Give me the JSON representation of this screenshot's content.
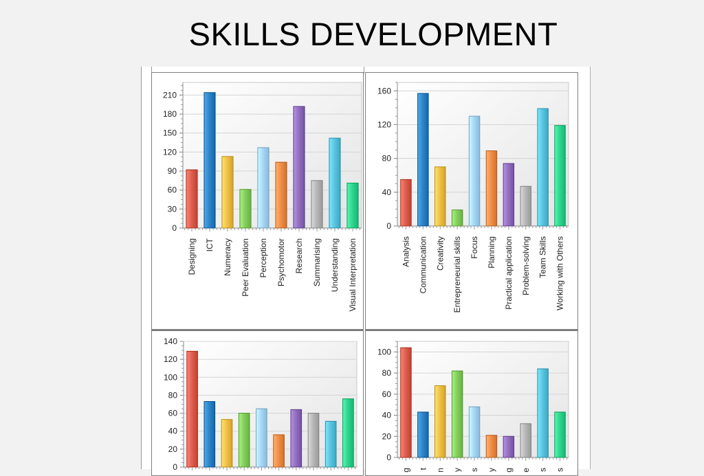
{
  "page": {
    "title": "SKILLS DEVELOPMENT"
  },
  "colors": {
    "palette": [
      "#e06050",
      "#2f86c8",
      "#f0c24a",
      "#86d060",
      "#a8d8f8",
      "#f08f4a",
      "#9370c0",
      "#b8b8b8",
      "#5cc6e0",
      "#33d690"
    ]
  },
  "chart_data": [
    {
      "type": "bar",
      "categories": [
        "Designing",
        "ICT",
        "Numeracy",
        "Peer Evaluation",
        "Perception",
        "Psychomotor",
        "Research",
        "Summarising",
        "Understanding",
        "Visual Interpretation"
      ],
      "values": [
        92,
        214,
        113,
        61,
        127,
        104,
        192,
        75,
        142,
        71
      ],
      "ylim": [
        0,
        230
      ],
      "yticks": [
        0,
        30,
        60,
        90,
        120,
        150,
        180,
        210
      ],
      "grid": true,
      "legend": "none"
    },
    {
      "type": "bar",
      "categories": [
        "Analysis",
        "Communication",
        "Creativity",
        "Entrepreneurial skills",
        "Focus",
        "Planning",
        "Practical application",
        "Problem-solving",
        "Team Skills",
        "Working with Others"
      ],
      "values": [
        55,
        157,
        70,
        19,
        130,
        89,
        74,
        47,
        139,
        119
      ],
      "ylim": [
        0,
        170
      ],
      "yticks": [
        0,
        40,
        80,
        120,
        160
      ],
      "grid": true,
      "legend": "none"
    },
    {
      "type": "bar",
      "categories": [
        "",
        "",
        "",
        "",
        "",
        "",
        "",
        "",
        "",
        ""
      ],
      "values": [
        129,
        73,
        53,
        60,
        65,
        36,
        64,
        60,
        51,
        76
      ],
      "ylim": [
        0,
        140
      ],
      "yticks": [
        0,
        20,
        40,
        60,
        80,
        100,
        120,
        140
      ],
      "grid": true,
      "legend": "none"
    },
    {
      "type": "bar",
      "categories": [
        "g",
        "t",
        "n",
        "y",
        "s",
        "y",
        "g",
        "e",
        "s",
        "s"
      ],
      "values": [
        104,
        43,
        68,
        82,
        48,
        21,
        20,
        32,
        84,
        43
      ],
      "ylim": [
        0,
        110
      ],
      "yticks": [
        0,
        20,
        40,
        60,
        80,
        100
      ],
      "grid": true,
      "legend": "none"
    }
  ]
}
